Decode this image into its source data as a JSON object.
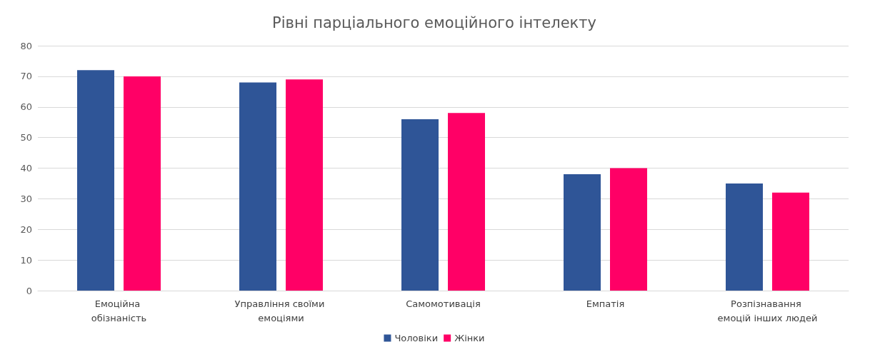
{
  "chart_data": {
    "type": "bar",
    "title": "Рівні парціального емоційного інтелекту",
    "categories": [
      "Емоційна обізнаність",
      "Управління своїми емоціями",
      "Самомотивація",
      "Емпатія",
      "Розпізнавання емоцій інших людей"
    ],
    "series": [
      {
        "name": "Чоловіки",
        "color": "#2f5597",
        "values": [
          72,
          68,
          56,
          38,
          35
        ]
      },
      {
        "name": "Жінки",
        "color": "#ff0066",
        "values": [
          70,
          69,
          58,
          40,
          32
        ]
      }
    ],
    "ylim": [
      0,
      80
    ],
    "yticks": [
      0,
      10,
      20,
      30,
      40,
      50,
      60,
      70,
      80
    ],
    "grid": "y",
    "legend": "bottom"
  }
}
